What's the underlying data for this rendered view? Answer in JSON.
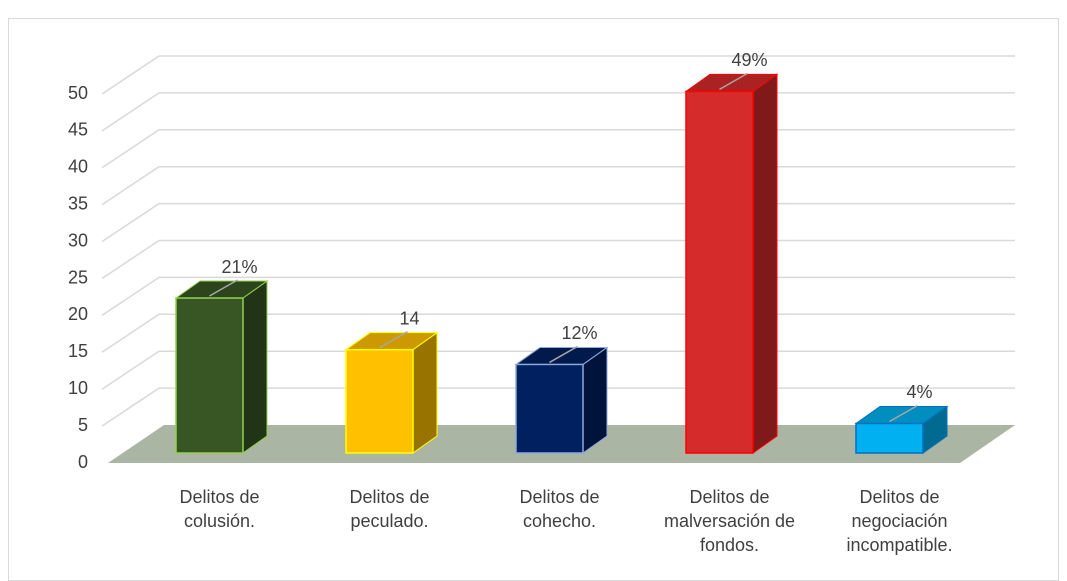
{
  "chart_data": {
    "type": "bar3d",
    "categories": [
      "Delitos de colusión.",
      "Delitos de peculado.",
      "Delitos de cohecho.",
      "Delitos de malversación de fondos.",
      "Delitos de negociación incompatible."
    ],
    "values": [
      21,
      14,
      12,
      49,
      4
    ],
    "value_labels": [
      "21%",
      "14",
      "12%",
      "49%",
      "4%"
    ],
    "colors": [
      "#375623",
      "#ffc000",
      "#002060",
      "#d62b2b",
      "#00b0f0"
    ],
    "edge_colors": [
      "#92d050",
      "#ffff00",
      "#8ea9db",
      "#ff0000",
      "#0070c0"
    ],
    "ylim": [
      0,
      50
    ],
    "yticks": [
      0,
      5,
      10,
      15,
      20,
      25,
      30,
      35,
      40,
      45,
      50
    ],
    "grid": true
  }
}
